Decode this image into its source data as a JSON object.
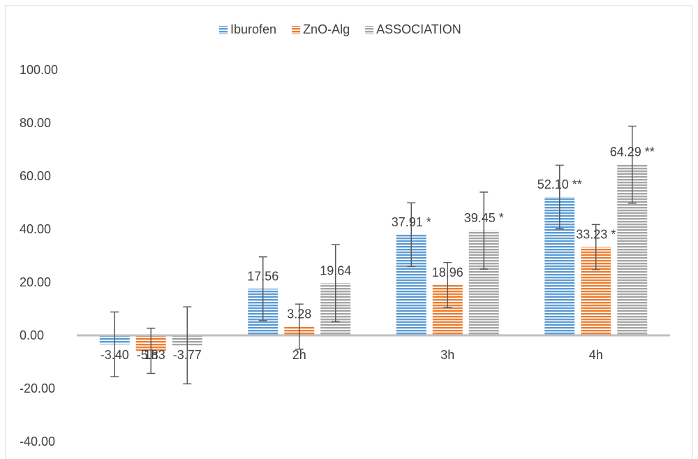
{
  "chart_data": {
    "type": "bar",
    "categories": [
      "1h",
      "2h",
      "3h",
      "4h"
    ],
    "series": [
      {
        "name": "Iburofen",
        "color": "#5b9bd5",
        "values": [
          -3.4,
          17.56,
          37.91,
          52.1
        ],
        "errors": [
          12.2,
          12.0,
          12.0,
          12.0
        ],
        "labels": [
          "-3.40",
          "17.56",
          "37.91 *",
          "52.10 **"
        ]
      },
      {
        "name": "ZnO-Alg",
        "color": "#ed7d31",
        "values": [
          -5.83,
          3.28,
          18.96,
          33.23
        ],
        "errors": [
          8.5,
          8.5,
          8.5,
          8.5
        ],
        "labels": [
          "-5.83",
          "3.28",
          "18.96",
          "33.23 *"
        ]
      },
      {
        "name": "ASSOCIATION",
        "color": "#a5a5a5",
        "values": [
          -3.77,
          19.64,
          39.45,
          64.29
        ],
        "errors": [
          14.5,
          14.5,
          14.5,
          14.5
        ],
        "labels": [
          "-3.77",
          "19.64",
          "39.45 *",
          "64.29 **"
        ]
      }
    ],
    "yticks": [
      "100.00",
      "80.00",
      "60.00",
      "40.00",
      "20.00",
      "0.00",
      "-20.00",
      "-40.00"
    ],
    "ylim": [
      -40,
      100
    ],
    "grid": false,
    "legend_position": "top"
  }
}
